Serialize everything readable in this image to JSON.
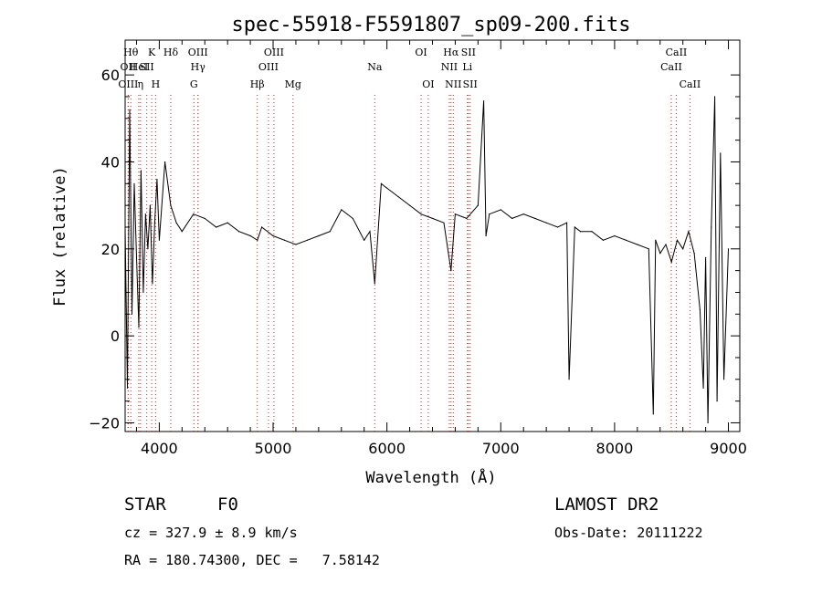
{
  "chart_data": {
    "type": "line",
    "title": "spec-55918-F5591807_sp09-200.fits",
    "xlabel": "Wavelength (Å)",
    "ylabel": "Flux (relative)",
    "xlim": [
      3700,
      9100
    ],
    "ylim": [
      -22,
      68
    ],
    "x_ticks": [
      4000,
      5000,
      6000,
      7000,
      8000,
      9000
    ],
    "y_ticks": [
      -20,
      0,
      20,
      40,
      60
    ],
    "grid": false,
    "series": [
      {
        "x": [
          3700,
          3720,
          3740,
          3760,
          3780,
          3800,
          3820,
          3840,
          3860,
          3880,
          3900,
          3920,
          3940,
          3960,
          3980,
          4000,
          4050,
          4100,
          4150,
          4200,
          4300,
          4400,
          4500,
          4600,
          4700,
          4800,
          4862,
          4900,
          5000,
          5100,
          5200,
          5300,
          5400,
          5500,
          5600,
          5700,
          5800,
          5850,
          5893,
          5950,
          6000,
          6100,
          6200,
          6300,
          6400,
          6500,
          6563,
          6600,
          6700,
          6800,
          6850,
          6870,
          6900,
          7000,
          7100,
          7200,
          7300,
          7400,
          7500,
          7580,
          7600,
          7650,
          7700,
          7800,
          7900,
          8000,
          8100,
          8200,
          8300,
          8340,
          8360,
          8400,
          8450,
          8500,
          8550,
          8600,
          8650,
          8700,
          8750,
          8780,
          8800,
          8820,
          8850,
          8880,
          8900,
          8930,
          8960,
          9000
        ],
        "y": [
          25,
          -12,
          52,
          5,
          35,
          18,
          2,
          38,
          10,
          28,
          20,
          30,
          12,
          26,
          36,
          22,
          40,
          30,
          26,
          24,
          28,
          27,
          25,
          26,
          24,
          23,
          22,
          25,
          23,
          22,
          21,
          22,
          23,
          24,
          29,
          27,
          22,
          24,
          12,
          35,
          34,
          32,
          30,
          28,
          27,
          26,
          15,
          28,
          27,
          30,
          54,
          23,
          28,
          29,
          27,
          28,
          27,
          26,
          25,
          26,
          -10,
          25,
          24,
          24,
          22,
          23,
          22,
          21,
          20,
          -18,
          22,
          19,
          21,
          17,
          22,
          20,
          24,
          19,
          6,
          -12,
          18,
          -20,
          25,
          55,
          -15,
          42,
          -10,
          20
        ]
      }
    ],
    "lines": [
      {
        "x": 3750,
        "label": "Hθ",
        "row": 1
      },
      {
        "x": 3727,
        "label": "OII",
        "row": 2
      },
      {
        "x": 3727,
        "label": "OIII",
        "row": 3
      },
      {
        "x": 3835,
        "label": "η",
        "row": 3
      },
      {
        "x": 3934,
        "label": "K",
        "row": 1
      },
      {
        "x": 3820,
        "label": "HeI",
        "row": 2
      },
      {
        "x": 3890,
        "label": "SII",
        "row": 2
      },
      {
        "x": 3968,
        "label": "H",
        "row": 3
      },
      {
        "x": 4101,
        "label": "Hδ",
        "row": 1
      },
      {
        "x": 4340,
        "label": "OIII",
        "row": 1
      },
      {
        "x": 4340,
        "label": "Hγ",
        "row": 2
      },
      {
        "x": 4304,
        "label": "G",
        "row": 3
      },
      {
        "x": 4861,
        "label": "Hβ",
        "row": 3
      },
      {
        "x": 5007,
        "label": "OIII",
        "row": 1
      },
      {
        "x": 4959,
        "label": "OIII",
        "row": 2
      },
      {
        "x": 5175,
        "label": "Mg",
        "row": 3
      },
      {
        "x": 5893,
        "label": "Na",
        "row": 2
      },
      {
        "x": 6300,
        "label": "OI",
        "row": 1
      },
      {
        "x": 6363,
        "label": "OI",
        "row": 3
      },
      {
        "x": 6563,
        "label": "Hα",
        "row": 1
      },
      {
        "x": 6716,
        "label": "SII",
        "row": 1
      },
      {
        "x": 6548,
        "label": "NII",
        "row": 2
      },
      {
        "x": 6707,
        "label": "Li",
        "row": 2
      },
      {
        "x": 6583,
        "label": "NII",
        "row": 3
      },
      {
        "x": 6731,
        "label": "SII",
        "row": 3
      },
      {
        "x": 8542,
        "label": "CaII",
        "row": 1
      },
      {
        "x": 8498,
        "label": "CaII",
        "row": 2
      },
      {
        "x": 8662,
        "label": "CaII",
        "row": 3
      }
    ]
  },
  "info": {
    "object_class": "STAR",
    "subclass": "F0",
    "survey": "LAMOST DR2",
    "cz": "cz = 327.9 ± 8.9 km/s",
    "obs_date": "Obs-Date: 20111222",
    "coords": "RA = 180.74300, DEC =   7.58142"
  }
}
